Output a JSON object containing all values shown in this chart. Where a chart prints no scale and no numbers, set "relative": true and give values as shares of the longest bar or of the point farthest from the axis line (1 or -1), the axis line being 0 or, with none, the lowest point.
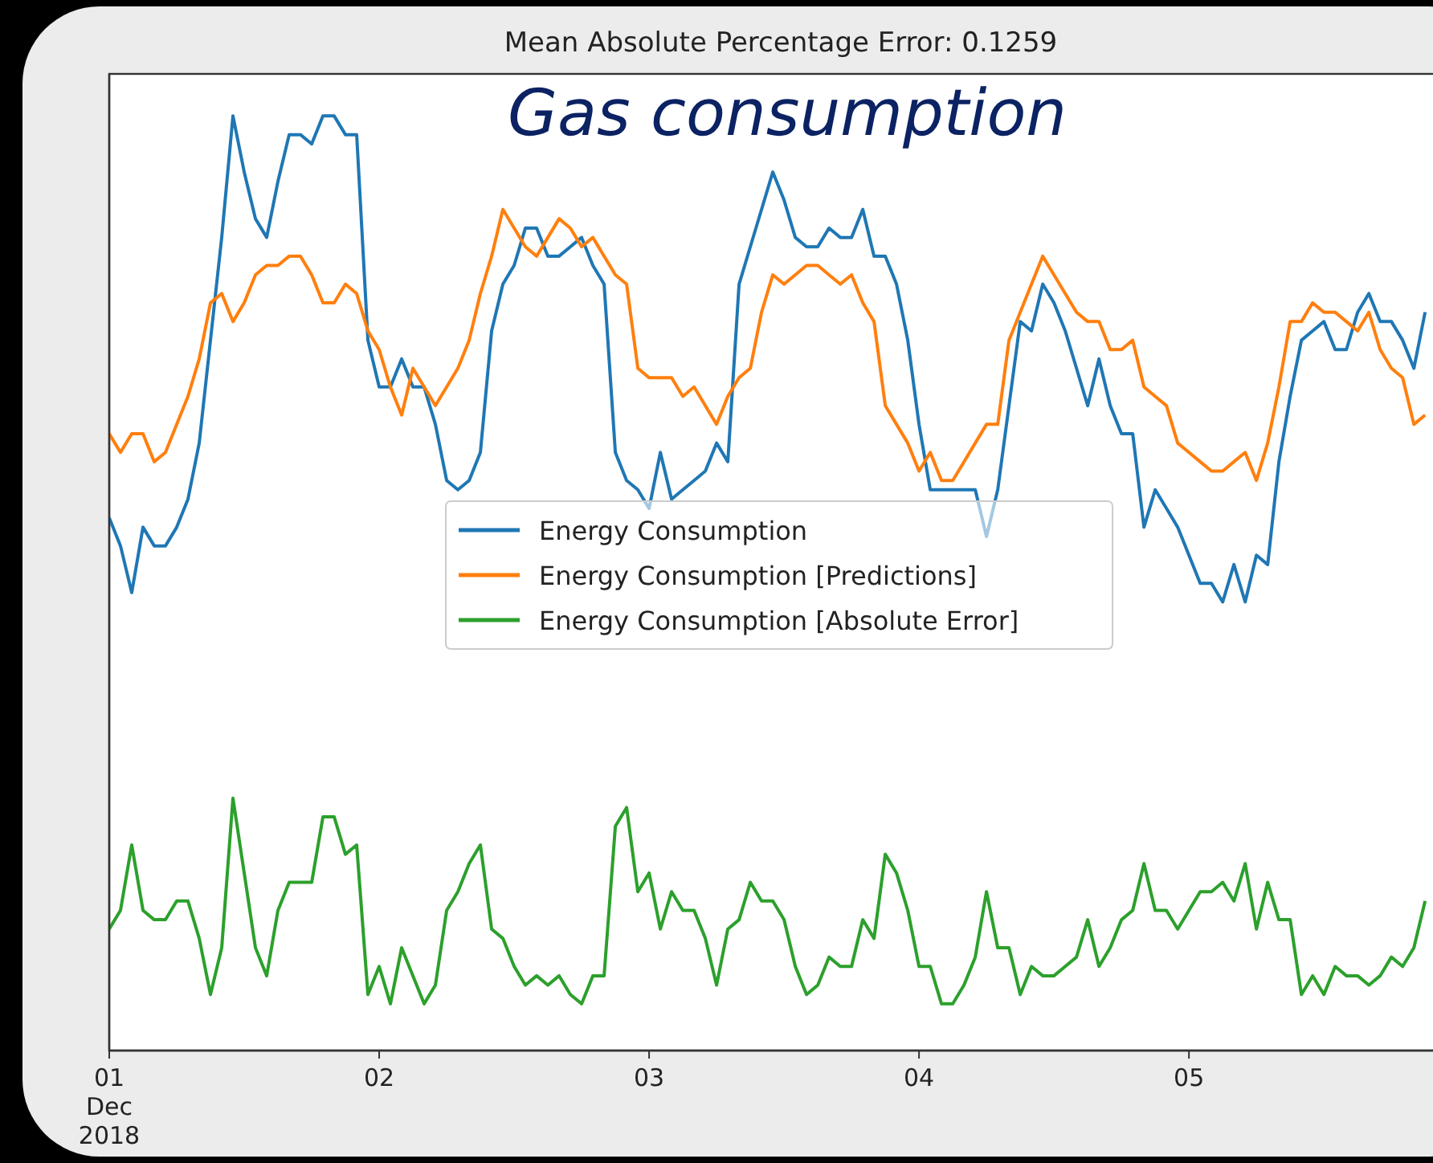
{
  "chart_data": {
    "type": "line",
    "title": "Mean Absolute Percentage Error: 0.1259",
    "subtitle": "Gas consumption",
    "relative": true,
    "x": [
      "2018-12-01T00:00",
      "2018-12-01T01:00",
      "2018-12-01T02:00",
      "2018-12-01T03:00",
      "2018-12-01T04:00",
      "2018-12-01T05:00",
      "2018-12-01T06:00",
      "2018-12-01T07:00",
      "2018-12-01T08:00",
      "2018-12-01T09:00",
      "2018-12-01T10:00",
      "2018-12-01T11:00",
      "2018-12-01T12:00",
      "2018-12-01T13:00",
      "2018-12-01T14:00",
      "2018-12-01T15:00",
      "2018-12-01T16:00",
      "2018-12-01T17:00",
      "2018-12-01T18:00",
      "2018-12-01T19:00",
      "2018-12-01T20:00",
      "2018-12-01T21:00",
      "2018-12-01T22:00",
      "2018-12-01T23:00",
      "2018-12-02T00:00",
      "2018-12-02T01:00",
      "2018-12-02T02:00",
      "2018-12-02T03:00",
      "2018-12-02T04:00",
      "2018-12-02T05:00",
      "2018-12-02T06:00",
      "2018-12-02T07:00",
      "2018-12-02T08:00",
      "2018-12-02T09:00",
      "2018-12-02T10:00",
      "2018-12-02T11:00",
      "2018-12-02T12:00",
      "2018-12-02T13:00",
      "2018-12-02T14:00",
      "2018-12-02T15:00",
      "2018-12-02T16:00",
      "2018-12-02T17:00",
      "2018-12-02T18:00",
      "2018-12-02T19:00",
      "2018-12-02T20:00",
      "2018-12-02T21:00",
      "2018-12-02T22:00",
      "2018-12-02T23:00",
      "2018-12-03T00:00",
      "2018-12-03T01:00",
      "2018-12-03T02:00",
      "2018-12-03T03:00",
      "2018-12-03T04:00",
      "2018-12-03T05:00",
      "2018-12-03T06:00",
      "2018-12-03T07:00",
      "2018-12-03T08:00",
      "2018-12-03T09:00",
      "2018-12-03T10:00",
      "2018-12-03T11:00",
      "2018-12-03T12:00",
      "2018-12-03T13:00",
      "2018-12-03T14:00",
      "2018-12-03T15:00",
      "2018-12-03T16:00",
      "2018-12-03T17:00",
      "2018-12-03T18:00",
      "2018-12-03T19:00",
      "2018-12-03T20:00",
      "2018-12-03T21:00",
      "2018-12-03T22:00",
      "2018-12-03T23:00",
      "2018-12-04T00:00",
      "2018-12-04T01:00",
      "2018-12-04T02:00",
      "2018-12-04T03:00",
      "2018-12-04T04:00",
      "2018-12-04T05:00",
      "2018-12-04T06:00",
      "2018-12-04T07:00",
      "2018-12-04T08:00",
      "2018-12-04T09:00",
      "2018-12-04T10:00",
      "2018-12-04T11:00",
      "2018-12-04T12:00",
      "2018-12-04T13:00",
      "2018-12-04T14:00",
      "2018-12-04T15:00",
      "2018-12-04T16:00",
      "2018-12-04T17:00",
      "2018-12-04T18:00",
      "2018-12-04T19:00",
      "2018-12-04T20:00",
      "2018-12-04T21:00",
      "2018-12-04T22:00",
      "2018-12-04T23:00",
      "2018-12-05T00:00",
      "2018-12-05T01:00",
      "2018-12-05T02:00",
      "2018-12-05T03:00",
      "2018-12-05T04:00",
      "2018-12-05T05:00",
      "2018-12-05T06:00",
      "2018-12-05T07:00",
      "2018-12-05T08:00",
      "2018-12-05T09:00",
      "2018-12-05T10:00",
      "2018-12-05T11:00",
      "2018-12-05T12:00",
      "2018-12-05T13:00",
      "2018-12-05T14:00",
      "2018-12-05T15:00",
      "2018-12-05T16:00",
      "2018-12-05T17:00",
      "2018-12-05T18:00",
      "2018-12-05T19:00",
      "2018-12-05T20:00",
      "2018-12-05T21:00"
    ],
    "xlim": [
      "2018-12-01T00:00",
      "2018-12-05T21:42"
    ],
    "xticks": [
      {
        "value": "2018-12-01",
        "label": "01\nDec\n2018"
      },
      {
        "value": "2018-12-02",
        "label": "02"
      },
      {
        "value": "2018-12-03",
        "label": "03"
      },
      {
        "value": "2018-12-04",
        "label": "04"
      },
      {
        "value": "2018-12-05",
        "label": "05"
      }
    ],
    "series": [
      {
        "name": "Energy Consumption",
        "color": "#1f77b4",
        "values": [
          0.57,
          0.54,
          0.49,
          0.56,
          0.54,
          0.54,
          0.56,
          0.59,
          0.65,
          0.76,
          0.87,
          1.0,
          0.94,
          0.89,
          0.87,
          0.93,
          0.98,
          0.98,
          0.97,
          1.0,
          1.0,
          0.98,
          0.98,
          0.76,
          0.71,
          0.71,
          0.74,
          0.71,
          0.71,
          0.67,
          0.61,
          0.6,
          0.61,
          0.64,
          0.77,
          0.82,
          0.84,
          0.88,
          0.88,
          0.85,
          0.85,
          0.86,
          0.87,
          0.84,
          0.82,
          0.64,
          0.61,
          0.6,
          0.58,
          0.64,
          0.59,
          0.6,
          0.61,
          0.62,
          0.65,
          0.63,
          0.82,
          0.86,
          0.9,
          0.94,
          0.91,
          0.87,
          0.86,
          0.86,
          0.88,
          0.87,
          0.87,
          0.9,
          0.85,
          0.85,
          0.82,
          0.76,
          0.67,
          0.6,
          0.6,
          0.6,
          0.6,
          0.6,
          0.55,
          0.6,
          0.69,
          0.78,
          0.77,
          0.82,
          0.8,
          0.77,
          0.73,
          0.69,
          0.74,
          0.69,
          0.66,
          0.66,
          0.56,
          0.6,
          0.58,
          0.56,
          0.53,
          0.5,
          0.5,
          0.48,
          0.52,
          0.48,
          0.53,
          0.52,
          0.63,
          0.7,
          0.76,
          0.77,
          0.78,
          0.75,
          0.75,
          0.79,
          0.81,
          0.78,
          0.78,
          0.76,
          0.73,
          0.79
        ]
      },
      {
        "name": "Energy Consumption [Predictions]",
        "color": "#ff7f0e",
        "values": [
          0.66,
          0.64,
          0.66,
          0.66,
          0.63,
          0.64,
          0.67,
          0.7,
          0.74,
          0.8,
          0.81,
          0.78,
          0.8,
          0.83,
          0.84,
          0.84,
          0.85,
          0.85,
          0.83,
          0.8,
          0.8,
          0.82,
          0.81,
          0.77,
          0.75,
          0.71,
          0.68,
          0.73,
          0.71,
          0.69,
          0.71,
          0.73,
          0.76,
          0.81,
          0.85,
          0.9,
          0.88,
          0.86,
          0.85,
          0.87,
          0.89,
          0.88,
          0.86,
          0.87,
          0.85,
          0.83,
          0.82,
          0.73,
          0.72,
          0.72,
          0.72,
          0.7,
          0.71,
          0.69,
          0.67,
          0.7,
          0.72,
          0.73,
          0.79,
          0.83,
          0.82,
          0.83,
          0.84,
          0.84,
          0.83,
          0.82,
          0.83,
          0.8,
          0.78,
          0.69,
          0.67,
          0.65,
          0.62,
          0.64,
          0.61,
          0.61,
          0.63,
          0.65,
          0.67,
          0.67,
          0.76,
          0.79,
          0.82,
          0.85,
          0.83,
          0.81,
          0.79,
          0.78,
          0.78,
          0.75,
          0.75,
          0.76,
          0.71,
          0.7,
          0.69,
          0.65,
          0.64,
          0.63,
          0.62,
          0.62,
          0.63,
          0.64,
          0.61,
          0.65,
          0.71,
          0.78,
          0.78,
          0.8,
          0.79,
          0.79,
          0.78,
          0.77,
          0.79,
          0.75,
          0.73,
          0.72,
          0.67,
          0.68
        ]
      },
      {
        "name": "Energy Consumption [Absolute Error]",
        "color": "#2ca02c",
        "values": [
          0.13,
          0.15,
          0.22,
          0.15,
          0.14,
          0.14,
          0.16,
          0.16,
          0.12,
          0.06,
          0.11,
          0.27,
          0.19,
          0.11,
          0.08,
          0.15,
          0.18,
          0.18,
          0.18,
          0.25,
          0.25,
          0.21,
          0.22,
          0.06,
          0.09,
          0.05,
          0.11,
          0.08,
          0.05,
          0.07,
          0.15,
          0.17,
          0.2,
          0.22,
          0.13,
          0.12,
          0.09,
          0.07,
          0.08,
          0.07,
          0.08,
          0.06,
          0.05,
          0.08,
          0.08,
          0.24,
          0.26,
          0.17,
          0.19,
          0.13,
          0.17,
          0.15,
          0.15,
          0.12,
          0.07,
          0.13,
          0.14,
          0.18,
          0.16,
          0.16,
          0.14,
          0.09,
          0.06,
          0.07,
          0.1,
          0.09,
          0.09,
          0.14,
          0.12,
          0.21,
          0.19,
          0.15,
          0.09,
          0.09,
          0.05,
          0.05,
          0.07,
          0.1,
          0.17,
          0.11,
          0.11,
          0.06,
          0.09,
          0.08,
          0.08,
          0.09,
          0.1,
          0.14,
          0.09,
          0.11,
          0.14,
          0.15,
          0.2,
          0.15,
          0.15,
          0.13,
          0.15,
          0.17,
          0.17,
          0.18,
          0.16,
          0.2,
          0.13,
          0.18,
          0.14,
          0.14,
          0.06,
          0.08,
          0.06,
          0.09,
          0.08,
          0.08,
          0.07,
          0.08,
          0.1,
          0.09,
          0.11,
          0.16
        ]
      }
    ],
    "legend": "center"
  }
}
